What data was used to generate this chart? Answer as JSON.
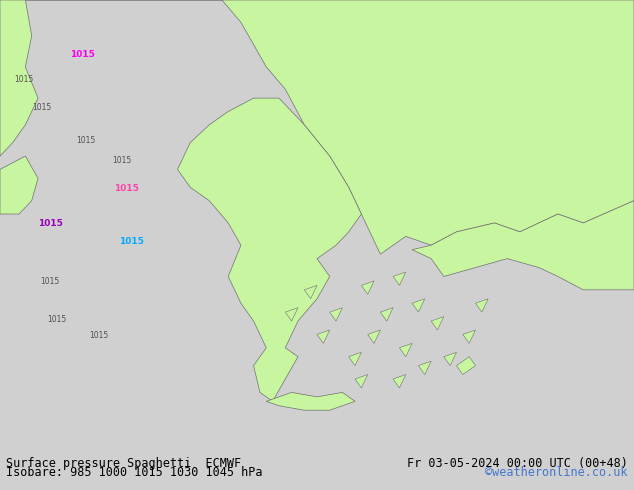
{
  "title_left": "Surface pressure Spaghetti  ECMWF",
  "title_right": "Fr 03-05-2024 00:00 UTC (00+48)",
  "subtitle": "Isobare: 985 1000 1015 1030 1045 hPa",
  "credit": "©weatheronline.co.uk",
  "bg_land": "#c8f5a0",
  "bg_sea": "#e0e0e0",
  "border_color": "#707070",
  "credit_color": "#4477cc",
  "bottom_bar_color": "#d0d0d0",
  "figsize": [
    6.34,
    4.9
  ],
  "dpi": 100,
  "isobar_label": "1015",
  "colors": {
    "gray": "#707070",
    "blue": "#00aaff",
    "magenta": "#ff00ee",
    "orange": "#ff7700",
    "red": "#dd0000",
    "teal": "#00bbbb",
    "purple": "#9900bb",
    "dark_teal": "#009999",
    "yellow": "#ddcc00",
    "olive": "#888800",
    "lime": "#88bb00",
    "pink": "#ff44aa",
    "brown": "#884400",
    "dark_gray": "#505050"
  }
}
